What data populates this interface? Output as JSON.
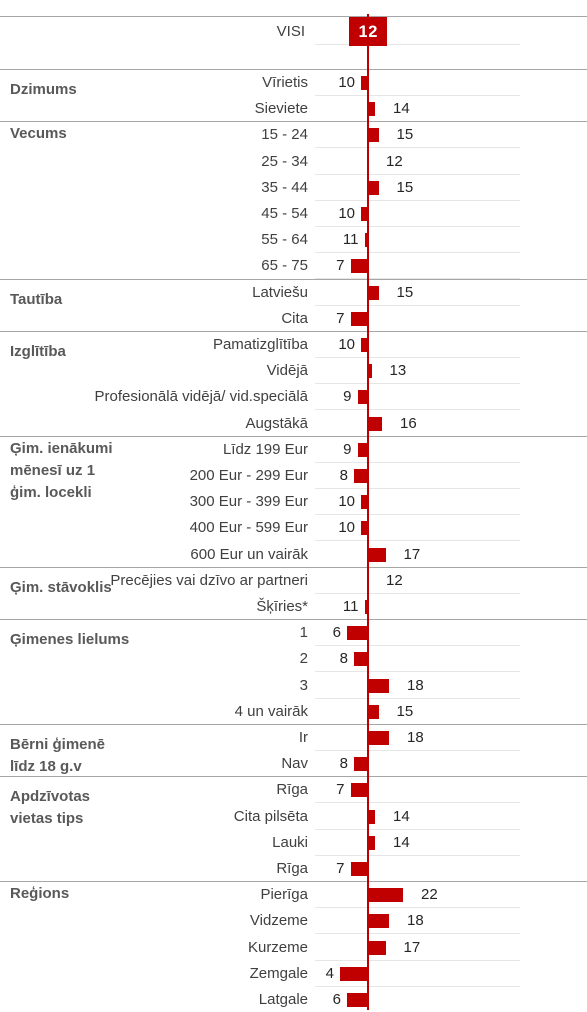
{
  "chart_data": {
    "type": "diverging-bar",
    "color": "#c00000",
    "overall": {
      "label": "VISI",
      "value": 12
    },
    "groups": [
      {
        "name": "Dzimums",
        "categories": [
          "Vīrietis",
          "Sieviete"
        ],
        "values": [
          10,
          14
        ]
      },
      {
        "name": "Vecums",
        "categories": [
          "15 - 24",
          "25 - 34",
          "35 - 44",
          "45 - 54",
          "55 - 64",
          "65 - 75"
        ],
        "values": [
          15,
          12,
          15,
          10,
          11,
          7
        ]
      },
      {
        "name": "Tautība",
        "categories": [
          "Latviešu",
          "Cita"
        ],
        "values": [
          15,
          7
        ]
      },
      {
        "name": "Izglītība",
        "categories": [
          "Pamatizglītība",
          "Vidējā",
          "Profesionālā vidējā/ vid.speciālā",
          "Augstākā"
        ],
        "values": [
          10,
          13,
          9,
          16
        ]
      },
      {
        "name": "Ģim. ienākumi mēnesī uz 1 ģim. locekli",
        "categories": [
          "Līdz 199 Eur",
          "200 Eur - 299 Eur",
          "300 Eur - 399 Eur",
          "400 Eur - 599 Eur",
          "600 Eur un vairāk"
        ],
        "values": [
          9,
          8,
          10,
          10,
          17
        ]
      },
      {
        "name": "Ģim. stāvoklis",
        "categories": [
          "Precējies vai dzīvo ar partneri",
          "Šķīries*"
        ],
        "values": [
          12,
          11
        ]
      },
      {
        "name": "Ģimenes lielums",
        "categories": [
          "1",
          "2",
          "3",
          "4  un vairāk"
        ],
        "values": [
          6,
          8,
          18,
          15
        ]
      },
      {
        "name": "Bērni ģimenē līdz 18 g.v",
        "categories": [
          "Ir",
          "Nav"
        ],
        "values": [
          18,
          8
        ]
      },
      {
        "name": "Apdzīvotas vietas tips",
        "categories": [
          "Rīga",
          "Cita pilsēta",
          "Lauki",
          "Rīga"
        ],
        "values": [
          7,
          14,
          14,
          7
        ]
      },
      {
        "name": "Reģions",
        "categories": [
          "Pierīga",
          "Vidzeme",
          "Kurzeme",
          "Zemgale",
          "Latgale"
        ],
        "values": [
          22,
          18,
          17,
          4,
          6
        ]
      }
    ]
  }
}
